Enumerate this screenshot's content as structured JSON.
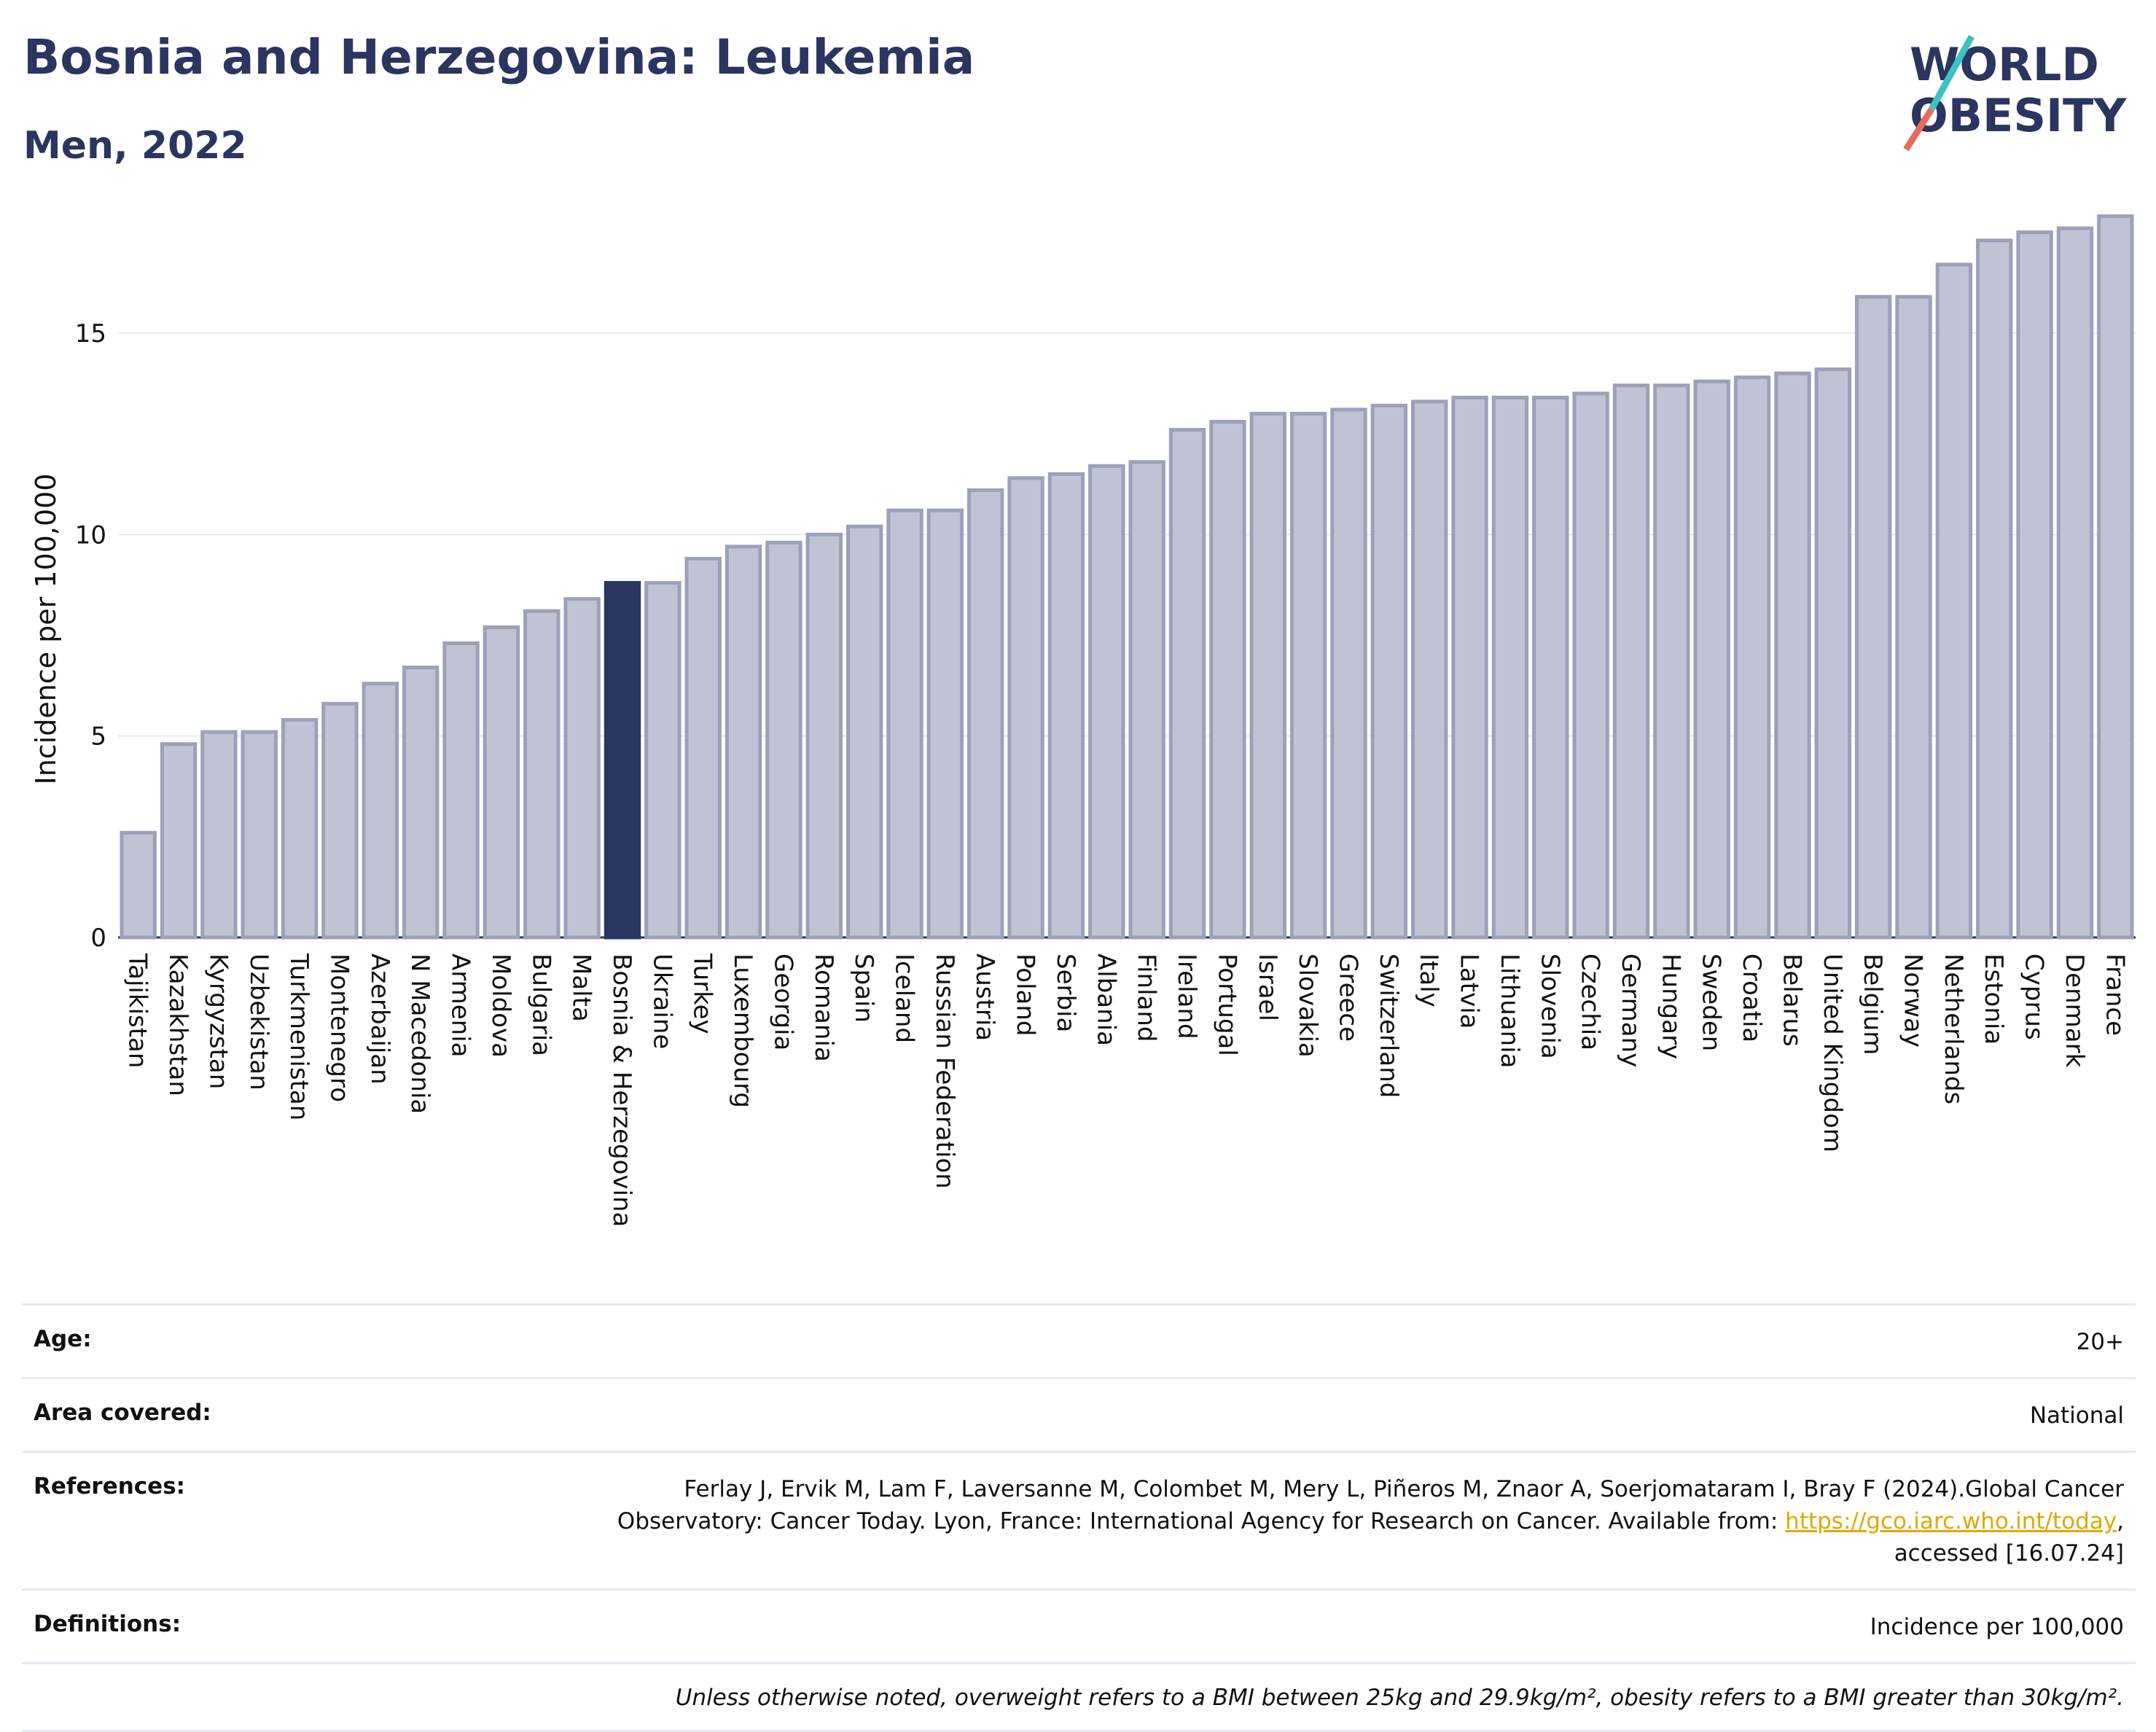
{
  "header": {
    "title": "Bosnia and Herzegovina: Leukemia",
    "subtitle": "Men, 2022"
  },
  "logo": {
    "line1": "WORLD",
    "line2": "OBESITY"
  },
  "colors": {
    "bar": "#bfc3d3",
    "bar_border": "#9ca1b9",
    "highlight": "#2a3560",
    "grid": "#e6e9f0"
  },
  "chart_data": {
    "type": "bar",
    "ylabel": "Incidence per 100,000",
    "xlabel": "",
    "ylim": [
      0,
      18.2
    ],
    "yticks": [
      0,
      5,
      10,
      15
    ],
    "grid": true,
    "highlight": "Bosnia & Herzegovina",
    "categories": [
      "Tajikistan",
      "Kazakhstan",
      "Kyrgyzstan",
      "Uzbekistan",
      "Turkmenistan",
      "Montenegro",
      "Azerbaijan",
      "N Macedonia",
      "Armenia",
      "Moldova",
      "Bulgaria",
      "Malta",
      "Bosnia & Herzegovina",
      "Ukraine",
      "Turkey",
      "Luxembourg",
      "Georgia",
      "Romania",
      "Spain",
      "Iceland",
      "Russian Federation",
      "Austria",
      "Poland",
      "Serbia",
      "Albania",
      "Finland",
      "Ireland",
      "Portugal",
      "Israel",
      "Slovakia",
      "Greece",
      "Switzerland",
      "Italy",
      "Latvia",
      "Lithuania",
      "Slovenia",
      "Czechia",
      "Germany",
      "Hungary",
      "Sweden",
      "Croatia",
      "Belarus",
      "United Kingdom",
      "Belgium",
      "Norway",
      "Netherlands",
      "Estonia",
      "Cyprus",
      "Denmark",
      "France"
    ],
    "values": [
      2.6,
      4.8,
      5.1,
      5.1,
      5.4,
      5.8,
      6.3,
      6.7,
      7.3,
      7.7,
      8.1,
      8.4,
      8.8,
      8.8,
      9.4,
      9.7,
      9.8,
      10.0,
      10.2,
      10.6,
      10.6,
      11.1,
      11.4,
      11.5,
      11.7,
      11.8,
      12.6,
      12.8,
      13.0,
      13.0,
      13.1,
      13.2,
      13.3,
      13.4,
      13.4,
      13.4,
      13.5,
      13.7,
      13.7,
      13.8,
      13.9,
      14.0,
      14.1,
      15.9,
      15.9,
      16.7,
      17.3,
      17.5,
      17.6,
      17.9
    ]
  },
  "meta": {
    "age_label": "Age:",
    "age_value": "20+",
    "area_label": "Area covered:",
    "area_value": "National",
    "references_label": "References:",
    "references_line1": "Ferlay J, Ervik M, Lam F, Laversanne M, Colombet M, Mery L, Piñeros M, Znaor A, Soerjomataram I, Bray F (2024).Global Cancer",
    "references_line2": "Observatory: Cancer Today. Lyon, France: International Agency for Research on Cancer. Available from: ",
    "references_link": "https://gco.iarc.who.int/today",
    "references_line2_end": ",",
    "references_line3": "accessed [16.07.24]",
    "definitions_label": "Definitions:",
    "definitions_value": "Incidence per 100,000",
    "note": "Unless otherwise noted, overweight refers to a BMI between 25kg and 29.9kg/m², obesity refers to a BMI greater than 30kg/m²."
  }
}
